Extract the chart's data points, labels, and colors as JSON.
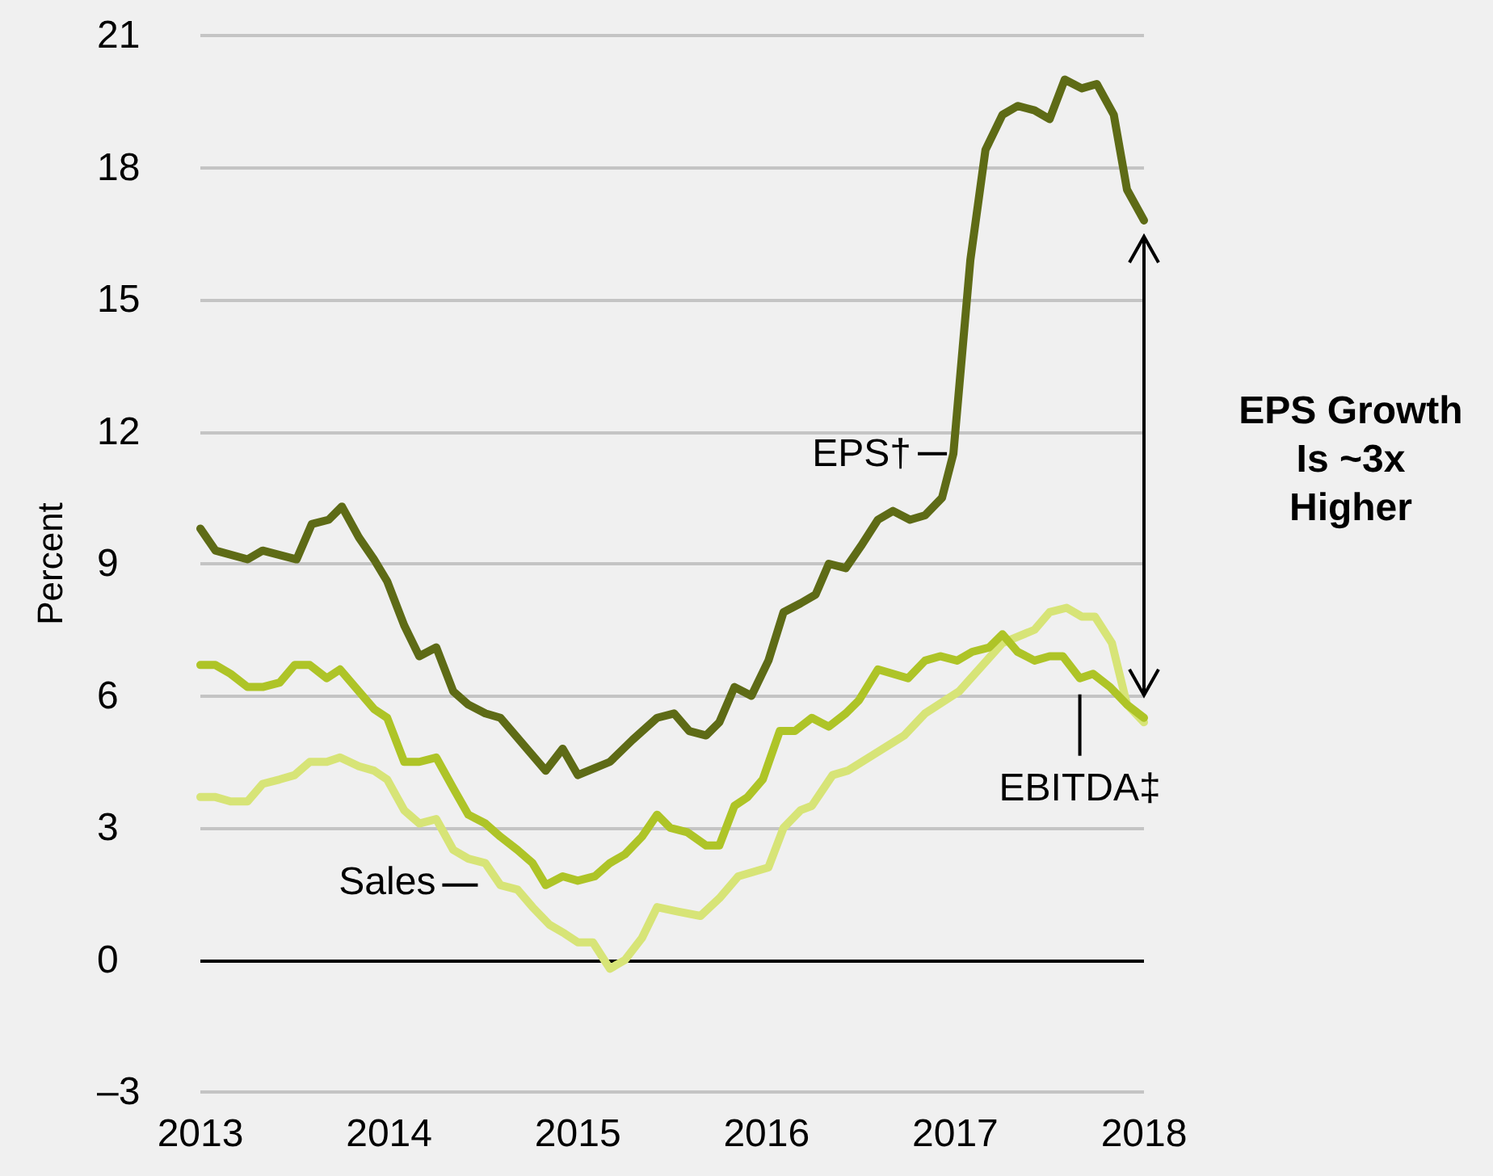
{
  "chart_data": {
    "type": "line",
    "ylabel": "Percent",
    "xlim": [
      2013,
      2018
    ],
    "xticks": [
      2013,
      2014,
      2015,
      2016,
      2017,
      2018
    ],
    "ylim": [
      -3,
      21
    ],
    "yticks": [
      {
        "value": -3,
        "label": "–3"
      },
      0,
      3,
      6,
      9,
      12,
      15,
      18,
      21
    ],
    "grid": "y",
    "legend": false,
    "marker": "none",
    "line_style": "solid",
    "ref_lines": [
      {
        "axis": "y",
        "value": 0,
        "color": "#000000"
      }
    ],
    "annotations": [
      "EPS Growth Is ~3x Higher"
    ],
    "series": [
      {
        "name": "EPS†",
        "color": "#5e6b16",
        "x": [
          2013.0,
          2013.08,
          2013.25,
          2013.33,
          2013.51,
          2013.59,
          2013.68,
          2013.75,
          2013.84,
          2013.92,
          2013.99,
          2014.08,
          2014.16,
          2014.25,
          2014.34,
          2014.42,
          2014.51,
          2014.59,
          2014.83,
          2014.92,
          2015.0,
          2015.17,
          2015.29,
          2015.42,
          2015.51,
          2015.59,
          2015.68,
          2015.75,
          2015.83,
          2015.92,
          2016.01,
          2016.09,
          2016.18,
          2016.26,
          2016.33,
          2016.42,
          2016.5,
          2016.59,
          2016.67,
          2016.76,
          2016.84,
          2016.93,
          2016.99,
          2017.08,
          2017.16,
          2017.25,
          2017.33,
          2017.42,
          2017.5,
          2017.58,
          2017.67,
          2017.75,
          2017.84,
          2017.91,
          2018.0
        ],
        "values": [
          9.8,
          9.3,
          9.1,
          9.3,
          9.1,
          9.9,
          10.0,
          10.3,
          9.6,
          9.1,
          8.6,
          7.6,
          6.9,
          7.1,
          6.1,
          5.8,
          5.6,
          5.5,
          4.3,
          4.8,
          4.2,
          4.5,
          5.0,
          5.5,
          5.6,
          5.2,
          5.1,
          5.4,
          6.2,
          6.0,
          6.8,
          7.9,
          8.1,
          8.3,
          9.0,
          8.9,
          9.4,
          10.0,
          10.2,
          10.0,
          10.1,
          10.5,
          11.5,
          15.9,
          18.4,
          19.2,
          19.4,
          19.3,
          19.1,
          20.0,
          19.8,
          19.9,
          19.2,
          17.5,
          16.8
        ]
      },
      {
        "name": "EBITDA‡",
        "color": "#aec427",
        "x": [
          2013.0,
          2013.08,
          2013.16,
          2013.25,
          2013.33,
          2013.42,
          2013.5,
          2013.58,
          2013.67,
          2013.74,
          2013.84,
          2013.92,
          2013.99,
          2014.08,
          2014.16,
          2014.25,
          2014.34,
          2014.42,
          2014.51,
          2014.59,
          2014.68,
          2014.76,
          2014.83,
          2014.92,
          2015.0,
          2015.09,
          2015.17,
          2015.25,
          2015.34,
          2015.42,
          2015.49,
          2015.58,
          2015.68,
          2015.75,
          2015.83,
          2015.9,
          2015.98,
          2016.07,
          2016.15,
          2016.24,
          2016.33,
          2016.42,
          2016.49,
          2016.59,
          2016.67,
          2016.75,
          2016.84,
          2016.92,
          2017.01,
          2017.09,
          2017.18,
          2017.25,
          2017.33,
          2017.42,
          2017.5,
          2017.57,
          2017.66,
          2017.73,
          2017.82,
          2017.91,
          2018.0
        ],
        "values": [
          6.7,
          6.7,
          6.5,
          6.2,
          6.2,
          6.3,
          6.7,
          6.7,
          6.4,
          6.6,
          6.1,
          5.7,
          5.5,
          4.5,
          4.5,
          4.6,
          3.9,
          3.3,
          3.1,
          2.8,
          2.5,
          2.2,
          1.7,
          1.9,
          1.8,
          1.9,
          2.2,
          2.4,
          2.8,
          3.3,
          3.0,
          2.9,
          2.6,
          2.6,
          3.5,
          3.7,
          4.1,
          5.2,
          5.2,
          5.5,
          5.3,
          5.6,
          5.9,
          6.6,
          6.5,
          6.4,
          6.8,
          6.9,
          6.8,
          7.0,
          7.1,
          7.4,
          7.0,
          6.8,
          6.9,
          6.9,
          6.4,
          6.5,
          6.2,
          5.8,
          5.5
        ]
      },
      {
        "name": "Sales",
        "color": "#d7e477",
        "x": [
          2013.0,
          2013.08,
          2013.16,
          2013.25,
          2013.33,
          2013.42,
          2013.5,
          2013.58,
          2013.67,
          2013.74,
          2013.84,
          2013.92,
          2013.99,
          2014.08,
          2014.16,
          2014.25,
          2014.34,
          2014.42,
          2014.51,
          2014.59,
          2014.68,
          2014.76,
          2014.85,
          2014.93,
          2015.0,
          2015.08,
          2015.17,
          2015.25,
          2015.34,
          2015.42,
          2015.53,
          2015.65,
          2015.75,
          2015.85,
          2016.01,
          2016.09,
          2016.18,
          2016.24,
          2016.35,
          2016.43,
          2016.73,
          2016.84,
          2017.02,
          2017.25,
          2017.42,
          2017.5,
          2017.59,
          2017.67,
          2017.74,
          2017.83,
          2017.91,
          2018.0
        ],
        "values": [
          3.7,
          3.7,
          3.6,
          3.6,
          4.0,
          4.1,
          4.2,
          4.5,
          4.5,
          4.6,
          4.4,
          4.3,
          4.1,
          3.4,
          3.1,
          3.2,
          2.5,
          2.3,
          2.2,
          1.7,
          1.6,
          1.2,
          0.8,
          0.6,
          0.4,
          0.4,
          -0.2,
          0.0,
          0.5,
          1.2,
          1.1,
          1.0,
          1.4,
          1.9,
          2.1,
          3.0,
          3.4,
          3.5,
          4.2,
          4.3,
          5.1,
          5.6,
          6.1,
          7.2,
          7.5,
          7.9,
          8.0,
          7.8,
          7.8,
          7.2,
          5.8,
          5.4
        ]
      }
    ]
  }
}
